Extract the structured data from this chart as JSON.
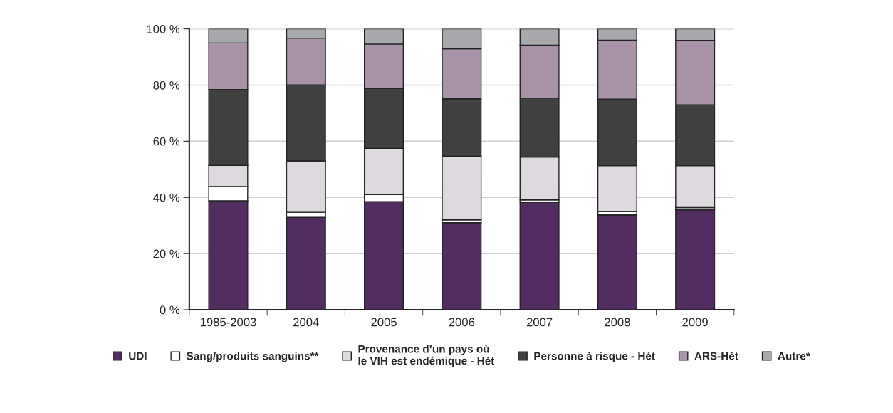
{
  "chart_data": {
    "type": "bar",
    "stacked": true,
    "categories": [
      "1985-2003",
      "2004",
      "2005",
      "2006",
      "2007",
      "2008",
      "2009"
    ],
    "series": [
      {
        "name": "UDI",
        "color": "#522d61",
        "values": [
          38.8,
          32.9,
          38.5,
          31.0,
          38.2,
          33.8,
          35.6
        ]
      },
      {
        "name": "Sang/produits sanguins**",
        "color": "#ffffff",
        "values": [
          5.1,
          1.8,
          2.5,
          1.0,
          0.9,
          1.2,
          0.8
        ]
      },
      {
        "name": "Provenance d’un pays où\nle VIH est endémique - Hét",
        "color": "#ded8df",
        "values": [
          7.5,
          18.3,
          16.5,
          22.7,
          15.3,
          16.3,
          14.9
        ]
      },
      {
        "name": "Personne à risque - Hét",
        "color": "#404040",
        "values": [
          27.0,
          27.1,
          21.3,
          20.4,
          21.0,
          23.7,
          21.7
        ]
      },
      {
        "name": "ARS-Hét",
        "color": "#a993a8",
        "values": [
          16.6,
          16.6,
          15.8,
          17.8,
          18.8,
          21.0,
          22.9
        ]
      },
      {
        "name": "Autre*",
        "color": "#a7a9ac",
        "values": [
          5.0,
          3.3,
          5.4,
          7.1,
          5.8,
          4.0,
          4.1
        ]
      }
    ],
    "ylim": [
      0,
      100
    ],
    "yticks": [
      {
        "value": 0,
        "label": "0 %"
      },
      {
        "value": 20,
        "label": "20 %"
      },
      {
        "value": 40,
        "label": "40 %"
      },
      {
        "value": 60,
        "label": "60 %"
      },
      {
        "value": 80,
        "label": "80 %"
      },
      {
        "value": 100,
        "label": "100 %"
      }
    ],
    "grid": "y",
    "legend": "bottom"
  }
}
